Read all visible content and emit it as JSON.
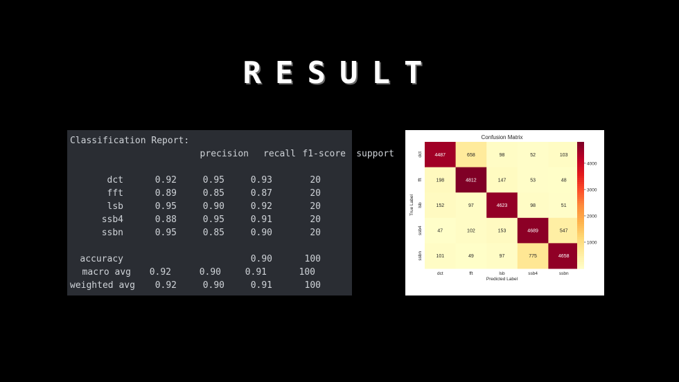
{
  "slide": {
    "title": "RESULT"
  },
  "report": {
    "heading": "Classification Report:",
    "columns": [
      "precision",
      "recall",
      "f1-score",
      "support"
    ],
    "rows": [
      {
        "label": "dct",
        "values": [
          "0.92",
          "0.95",
          "0.93",
          "20"
        ]
      },
      {
        "label": "fft",
        "values": [
          "0.89",
          "0.85",
          "0.87",
          "20"
        ]
      },
      {
        "label": "lsb",
        "values": [
          "0.95",
          "0.90",
          "0.92",
          "20"
        ]
      },
      {
        "label": "ssb4",
        "values": [
          "0.88",
          "0.95",
          "0.91",
          "20"
        ]
      },
      {
        "label": "ssbn",
        "values": [
          "0.95",
          "0.85",
          "0.90",
          "20"
        ]
      }
    ],
    "summary": [
      {
        "label": "accuracy",
        "values": [
          "",
          "",
          "0.90",
          "100"
        ]
      },
      {
        "label": "macro avg",
        "values": [
          "0.92",
          "0.90",
          "0.91",
          "100"
        ]
      },
      {
        "label": "weighted avg",
        "values": [
          "0.92",
          "0.90",
          "0.91",
          "100"
        ]
      }
    ]
  },
  "chart_data": {
    "type": "heatmap",
    "title": "Confusion Matrix",
    "xlabel": "Predicted Label",
    "ylabel": "True Label",
    "x_categories": [
      "dct",
      "fft",
      "lsb",
      "ssb4",
      "ssbn"
    ],
    "y_categories": [
      "dct",
      "fft",
      "lsb",
      "ssb4",
      "ssbn"
    ],
    "values": [
      [
        4487,
        658,
        98,
        52,
        103
      ],
      [
        198,
        4812,
        147,
        53,
        48
      ],
      [
        152,
        97,
        4623,
        98,
        51
      ],
      [
        47,
        102,
        153,
        4689,
        547
      ],
      [
        101,
        49,
        97,
        775,
        4658
      ]
    ],
    "colorbar": {
      "ticks": [
        1000,
        2000,
        3000,
        4000
      ],
      "range": [
        0,
        4812
      ],
      "colormap": "YlOrRd"
    }
  }
}
